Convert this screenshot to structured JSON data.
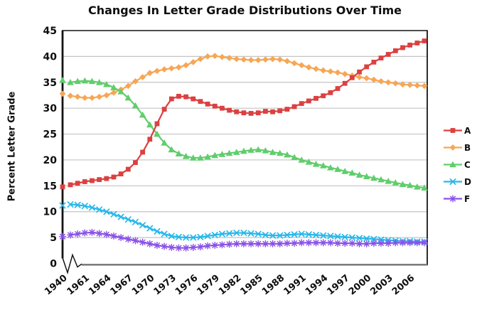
{
  "title": "Changes In Letter Grade Distributions Over Time",
  "chart_data": {
    "type": "line",
    "title": "Changes In Letter Grade Distributions Over Time",
    "xlabel": "",
    "ylabel": "Percent Letter Grade",
    "ylim": [
      0,
      45
    ],
    "ytick_step": 5,
    "grid": "horizontal",
    "axis_break_after_first_x": true,
    "legend_position": "right",
    "x_tick_labels": [
      "1940",
      "1961",
      "1964",
      "1967",
      "1970",
      "1973",
      "1976",
      "1979",
      "1982",
      "1985",
      "1988",
      "1991",
      "1994",
      "1997",
      "2000",
      "2003",
      "2006"
    ],
    "x": [
      1940,
      1959,
      1960,
      1961,
      1962,
      1963,
      1964,
      1965,
      1966,
      1967,
      1968,
      1969,
      1970,
      1971,
      1972,
      1973,
      1974,
      1975,
      1976,
      1977,
      1978,
      1979,
      1980,
      1981,
      1982,
      1983,
      1984,
      1985,
      1986,
      1987,
      1988,
      1989,
      1990,
      1991,
      1992,
      1993,
      1994,
      1995,
      1996,
      1997,
      1998,
      1999,
      2000,
      2001,
      2002,
      2003,
      2004,
      2005,
      2006,
      2007,
      2008
    ],
    "series": [
      {
        "name": "A",
        "color": "#dc4040",
        "marker": "square",
        "values": [
          14.8,
          15.2,
          15.5,
          15.8,
          16.0,
          16.2,
          16.4,
          16.7,
          17.3,
          18.2,
          19.5,
          21.5,
          24.0,
          27.0,
          29.8,
          31.8,
          32.3,
          32.2,
          31.8,
          31.3,
          30.8,
          30.4,
          30.0,
          29.6,
          29.3,
          29.1,
          29.0,
          29.1,
          29.4,
          29.3,
          29.5,
          29.8,
          30.3,
          30.9,
          31.4,
          31.9,
          32.4,
          33.0,
          33.8,
          34.8,
          35.9,
          37.0,
          38.0,
          38.9,
          39.7,
          40.4,
          41.1,
          41.7,
          42.2,
          42.6,
          43.0
        ]
      },
      {
        "name": "B",
        "color": "#f7a654",
        "marker": "diamond",
        "values": [
          32.8,
          32.4,
          32.2,
          32.0,
          32.0,
          32.2,
          32.5,
          33.0,
          33.6,
          34.3,
          35.2,
          36.0,
          36.8,
          37.2,
          37.5,
          37.7,
          37.9,
          38.3,
          38.9,
          39.5,
          40.0,
          40.1,
          39.9,
          39.7,
          39.5,
          39.4,
          39.3,
          39.3,
          39.4,
          39.5,
          39.4,
          39.1,
          38.7,
          38.3,
          37.9,
          37.6,
          37.3,
          37.1,
          36.9,
          36.6,
          36.3,
          36.0,
          35.8,
          35.5,
          35.2,
          35.0,
          34.8,
          34.6,
          34.5,
          34.4,
          34.3
        ]
      },
      {
        "name": "C",
        "color": "#5fce6b",
        "marker": "triangle",
        "values": [
          35.4,
          35.0,
          35.2,
          35.3,
          35.2,
          35.0,
          34.6,
          34.0,
          33.2,
          32.0,
          30.5,
          28.7,
          26.8,
          25.0,
          23.3,
          22.0,
          21.2,
          20.7,
          20.4,
          20.4,
          20.6,
          20.9,
          21.1,
          21.3,
          21.5,
          21.7,
          21.9,
          22.0,
          21.8,
          21.5,
          21.3,
          21.0,
          20.5,
          20.0,
          19.6,
          19.2,
          18.9,
          18.5,
          18.2,
          17.8,
          17.5,
          17.1,
          16.8,
          16.5,
          16.2,
          15.9,
          15.6,
          15.3,
          15.1,
          14.8,
          14.6
        ]
      },
      {
        "name": "D",
        "color": "#27b8ea",
        "marker": "x",
        "values": [
          11.2,
          11.4,
          11.3,
          11.1,
          10.8,
          10.4,
          10.0,
          9.5,
          9.0,
          8.5,
          8.0,
          7.4,
          6.8,
          6.2,
          5.7,
          5.3,
          5.1,
          5.0,
          5.0,
          5.1,
          5.3,
          5.5,
          5.7,
          5.8,
          5.9,
          5.9,
          5.8,
          5.7,
          5.5,
          5.4,
          5.4,
          5.5,
          5.6,
          5.7,
          5.6,
          5.5,
          5.4,
          5.3,
          5.2,
          5.1,
          5.0,
          4.9,
          4.8,
          4.7,
          4.6,
          4.5,
          4.4,
          4.3,
          4.3,
          4.2,
          4.2
        ]
      },
      {
        "name": "F",
        "color": "#8a52e8",
        "marker": "asterisk",
        "values": [
          5.2,
          5.5,
          5.7,
          5.9,
          6.0,
          5.8,
          5.6,
          5.3,
          5.0,
          4.7,
          4.4,
          4.1,
          3.8,
          3.5,
          3.3,
          3.1,
          3.0,
          3.0,
          3.1,
          3.2,
          3.4,
          3.5,
          3.6,
          3.7,
          3.8,
          3.8,
          3.8,
          3.8,
          3.8,
          3.8,
          3.8,
          3.9,
          3.9,
          4.0,
          4.0,
          4.0,
          4.0,
          4.0,
          3.9,
          3.9,
          3.9,
          3.8,
          3.8,
          3.9,
          3.9,
          3.9,
          4.0,
          4.0,
          4.0,
          4.0,
          4.0
        ]
      }
    ],
    "colors": {
      "grid": "#c4c4c4",
      "axis": "#141414",
      "bottom_axis": "#7d7d7d",
      "text": "#0e0e0e"
    }
  }
}
